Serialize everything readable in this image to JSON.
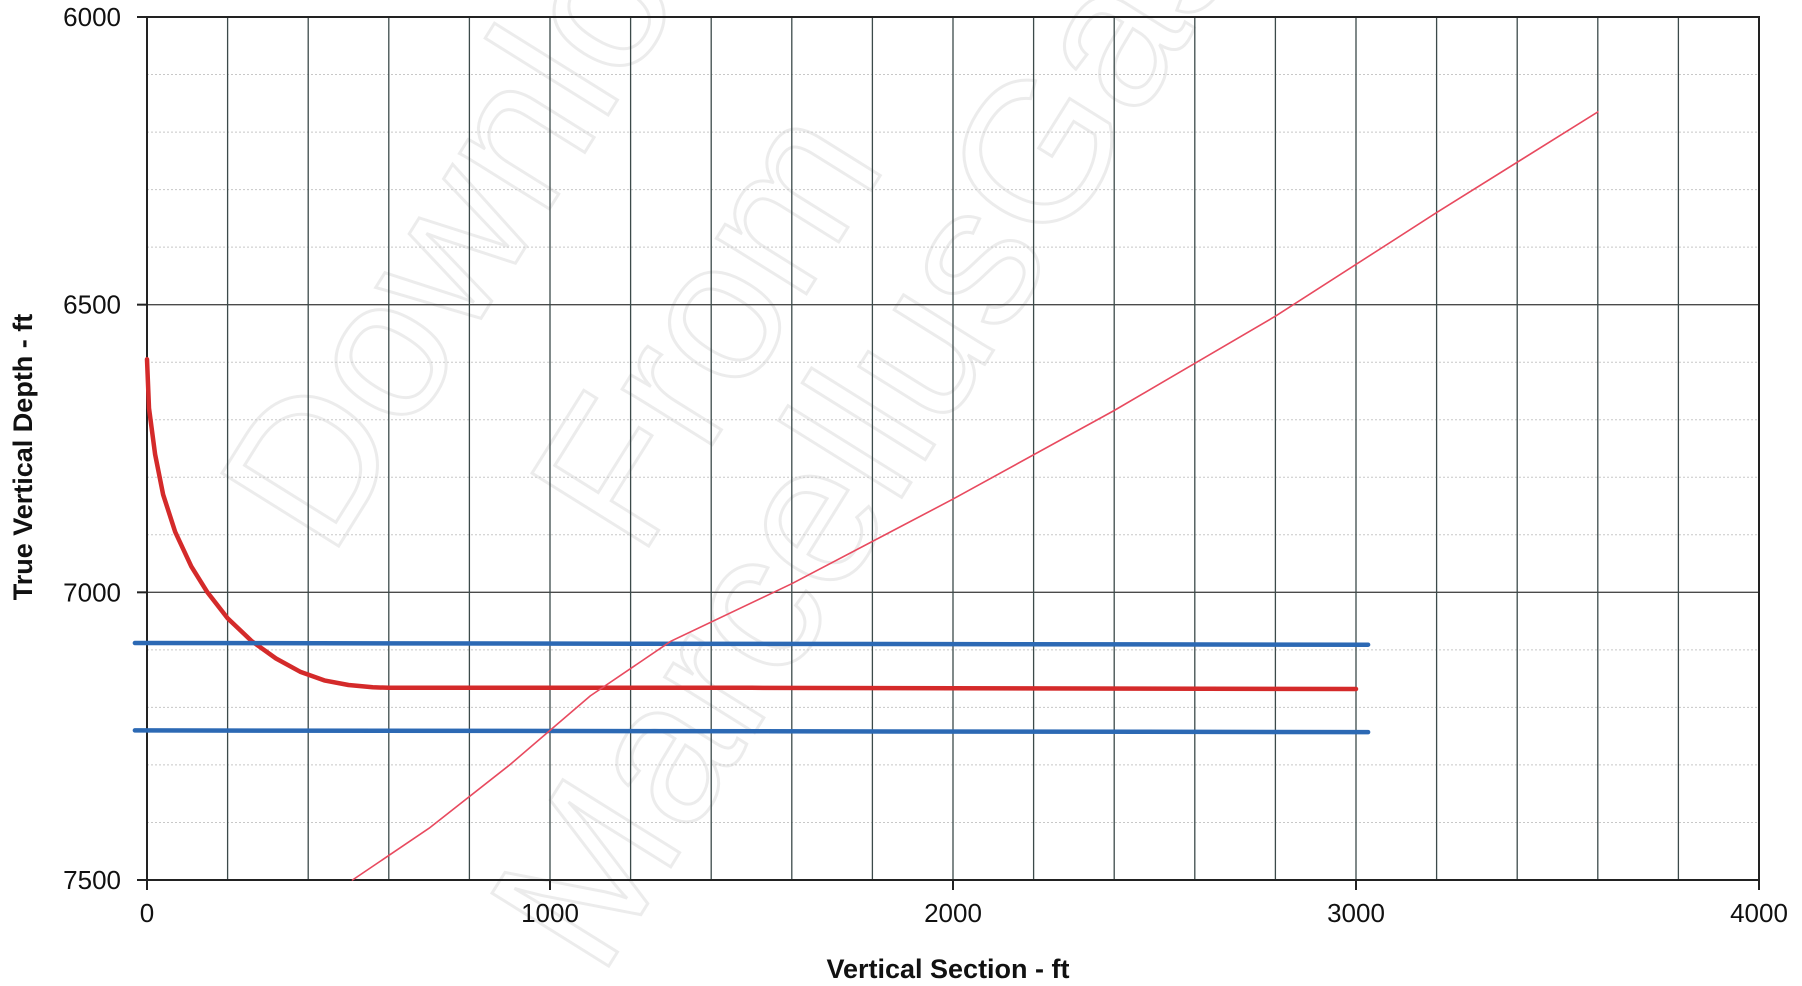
{
  "chart_data": {
    "type": "line",
    "title": "",
    "xlabel": "Vertical Section - ft",
    "ylabel": "True Vertical Depth - ft",
    "xlim": [
      0,
      4000
    ],
    "ylim": [
      6000,
      7500
    ],
    "y_inverted": true,
    "x_ticks": [
      0,
      1000,
      2000,
      3000,
      4000
    ],
    "y_ticks": [
      6000,
      6500,
      7000,
      7500
    ],
    "x_tick_labels": [
      "0",
      "1000",
      "2000",
      "3000",
      "4000"
    ],
    "y_tick_labels": [
      "6000",
      "6500",
      "7000",
      "7500"
    ],
    "x_minor_step": 200,
    "y_minor_step": 100,
    "grid": true,
    "legend": "none",
    "series": [
      {
        "color": "#d42a2a",
        "width": "thick",
        "points": [
          [
            0,
            6595
          ],
          [
            5,
            6680
          ],
          [
            20,
            6760
          ],
          [
            40,
            6830
          ],
          [
            70,
            6895
          ],
          [
            110,
            6955
          ],
          [
            150,
            7000
          ],
          [
            200,
            7045
          ],
          [
            260,
            7085
          ],
          [
            320,
            7115
          ],
          [
            380,
            7138
          ],
          [
            440,
            7153
          ],
          [
            500,
            7161
          ],
          [
            560,
            7165
          ],
          [
            600,
            7166
          ],
          [
            1500,
            7166
          ],
          [
            3000,
            7168
          ]
        ]
      },
      {
        "color": "#2c69b4",
        "width": "thick",
        "points": [
          [
            -30,
            7088
          ],
          [
            3030,
            7091
          ]
        ]
      },
      {
        "color": "#2c69b4",
        "width": "thick",
        "points": [
          [
            -30,
            7240
          ],
          [
            3030,
            7243
          ]
        ]
      },
      {
        "color": "#e84a5f",
        "width": "thin",
        "points": [
          [
            510,
            7500
          ],
          [
            700,
            7410
          ],
          [
            900,
            7300
          ],
          [
            1100,
            7180
          ],
          [
            1300,
            7085
          ],
          [
            1600,
            6985
          ],
          [
            2000,
            6838
          ],
          [
            2400,
            6684
          ],
          [
            2800,
            6520
          ],
          [
            3200,
            6340
          ],
          [
            3600,
            6165
          ]
        ]
      }
    ]
  },
  "watermark": {
    "lines": [
      "Download",
      "From",
      "MarcellusGas.Org"
    ]
  }
}
